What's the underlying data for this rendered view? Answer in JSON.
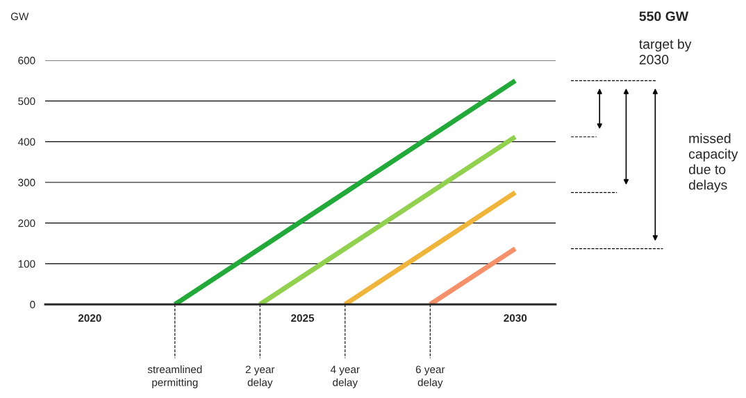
{
  "chart_data": {
    "type": "line",
    "ylabel": "GW",
    "xlim": [
      2018.95,
      2030.95
    ],
    "xticks": [
      2020,
      2025,
      2030
    ],
    "ylim": [
      0,
      600
    ],
    "yticks": [
      0,
      100,
      200,
      300,
      400,
      500,
      600
    ],
    "grid": "y",
    "series": [
      {
        "color": "#22a93a",
        "x": [
          2022,
          2030
        ],
        "values": [
          0,
          550
        ]
      },
      {
        "color": "#92d050",
        "x": [
          2024,
          2030
        ],
        "values": [
          0,
          412
        ]
      },
      {
        "color": "#efb43c",
        "x": [
          2026,
          2030
        ],
        "values": [
          0,
          275
        ]
      },
      {
        "color": "#f4906a",
        "x": [
          2028,
          2030
        ],
        "values": [
          0,
          137
        ]
      }
    ],
    "ref_lines": [
      {
        "axis": "x",
        "value": 2022,
        "label": "streamlined permitting",
        "line_style": "dashed"
      },
      {
        "axis": "x",
        "value": 2024,
        "label": "2 year delay",
        "line_style": "dashed"
      },
      {
        "axis": "x",
        "value": 2026,
        "label": "4 year delay",
        "line_style": "dashed"
      },
      {
        "axis": "x",
        "value": 2028,
        "label": "6 year delay",
        "line_style": "dashed"
      }
    ],
    "annotations": [
      "550 GW target by 2030",
      "missed capacity due to delays"
    ]
  }
}
